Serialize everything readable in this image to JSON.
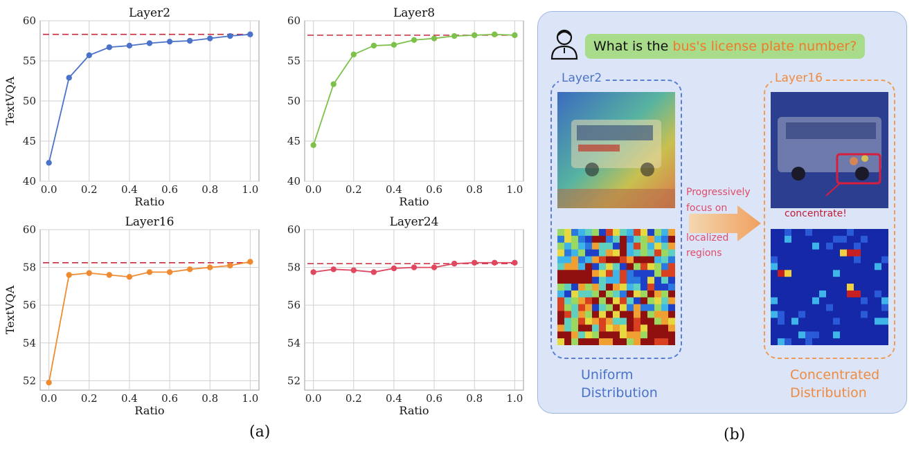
{
  "chart_data": [
    {
      "type": "line",
      "title": "Layer2",
      "xlabel": "Ratio",
      "ylabel": "TextVQA",
      "x": [
        0.0,
        0.1,
        0.2,
        0.3,
        0.4,
        0.5,
        0.6,
        0.7,
        0.8,
        0.9,
        1.0
      ],
      "series": [
        {
          "values": [
            42.3,
            52.9,
            55.7,
            56.7,
            56.9,
            57.2,
            57.4,
            57.5,
            57.8,
            58.1,
            58.3
          ],
          "color": "#4a72c8"
        }
      ],
      "baseline": 58.3,
      "xlim": [
        0.0,
        1.0
      ],
      "ylim": [
        40,
        60
      ],
      "xticks": [
        "0.0",
        "0.2",
        "0.4",
        "0.6",
        "0.8",
        "1.0"
      ],
      "yticks": [
        "40",
        "45",
        "50",
        "55",
        "60"
      ],
      "grid": true
    },
    {
      "type": "line",
      "title": "Layer8",
      "xlabel": "Ratio",
      "ylabel": "",
      "x": [
        0.0,
        0.1,
        0.2,
        0.3,
        0.4,
        0.5,
        0.6,
        0.7,
        0.8,
        0.9,
        1.0
      ],
      "series": [
        {
          "values": [
            44.5,
            52.1,
            55.8,
            56.9,
            57.0,
            57.6,
            57.8,
            58.1,
            58.2,
            58.3,
            58.2
          ],
          "color": "#7dc04a"
        }
      ],
      "baseline": 58.2,
      "xlim": [
        0.0,
        1.0
      ],
      "ylim": [
        40,
        60
      ],
      "xticks": [
        "0.0",
        "0.2",
        "0.4",
        "0.6",
        "0.8",
        "1.0"
      ],
      "yticks": [
        "40",
        "45",
        "50",
        "55",
        "60"
      ],
      "grid": true
    },
    {
      "type": "line",
      "title": "Layer16",
      "xlabel": "Ratio",
      "ylabel": "TextVQA",
      "x": [
        0.0,
        0.1,
        0.2,
        0.3,
        0.4,
        0.5,
        0.6,
        0.7,
        0.8,
        0.9,
        1.0
      ],
      "series": [
        {
          "values": [
            51.9,
            57.6,
            57.7,
            57.6,
            57.5,
            57.75,
            57.75,
            57.9,
            58.0,
            58.1,
            58.3
          ],
          "color": "#f08a30"
        }
      ],
      "baseline": 58.25,
      "xlim": [
        0.0,
        1.0
      ],
      "ylim": [
        51.5,
        60
      ],
      "xticks": [
        "0.0",
        "0.2",
        "0.4",
        "0.6",
        "0.8",
        "1.0"
      ],
      "yticks": [
        "52",
        "54",
        "56",
        "58",
        "60"
      ],
      "grid": true
    },
    {
      "type": "line",
      "title": "Layer24",
      "xlabel": "Ratio",
      "ylabel": "",
      "x": [
        0.0,
        0.1,
        0.2,
        0.3,
        0.4,
        0.5,
        0.6,
        0.7,
        0.8,
        0.9,
        1.0
      ],
      "series": [
        {
          "values": [
            57.75,
            57.9,
            57.85,
            57.75,
            57.95,
            58.0,
            58.0,
            58.2,
            58.25,
            58.25,
            58.25
          ],
          "color": "#e04860"
        }
      ],
      "baseline": 58.2,
      "xlim": [
        0.0,
        1.0
      ],
      "ylim": [
        51.5,
        60
      ],
      "xticks": [
        "0.0",
        "0.2",
        "0.4",
        "0.6",
        "0.8",
        "1.0"
      ],
      "yticks": [
        "52",
        "54",
        "56",
        "58",
        "60"
      ],
      "grid": true
    }
  ],
  "baseline_color": "#c8283a",
  "captions": {
    "a": "(a)",
    "b": "(b)"
  },
  "illustration": {
    "question_prefix": "What is the ",
    "question_highlight": "bus's license plate number?",
    "left_box_label": "Layer2",
    "right_box_label": "Layer16",
    "arrow_text": [
      "Progressively",
      "focus on",
      "localized",
      "regions"
    ],
    "left_dist_label": [
      "Uniform",
      "Distribution"
    ],
    "right_dist_label": [
      "Concentrated",
      "Distribution"
    ],
    "concentrate_label": "concentrate!",
    "colors": {
      "blue": "#4a72c8",
      "orange": "#f08a40",
      "question_bg": "#a8db8a",
      "panel_bg": "#dbe5f7"
    }
  }
}
